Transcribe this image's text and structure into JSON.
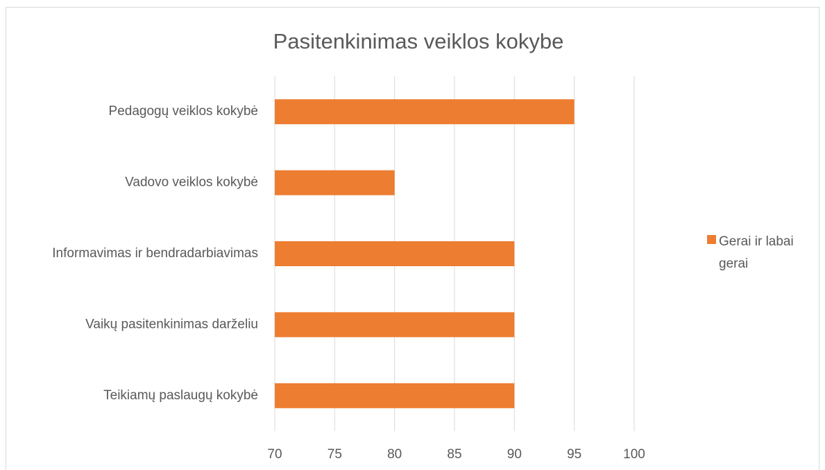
{
  "chart_data": {
    "type": "bar",
    "orientation": "horizontal",
    "title": "Pasitenkinimas veiklos kokybe",
    "categories": [
      "Pedagogų veiklos kokybė",
      "Vadovo veiklos kokybė",
      "Informavimas ir bendradarbiavimas",
      "Vaikų pasitenkinimas darželiu",
      "Teikiamų paslaugų kokybė"
    ],
    "series": [
      {
        "name": "Gerai ir labai gerai",
        "color": "#ed7d31",
        "values": [
          95,
          80,
          90,
          90,
          90
        ]
      }
    ],
    "xlim": [
      70,
      100
    ],
    "xticks": [
      70,
      75,
      80,
      85,
      90,
      95,
      100
    ],
    "grid": true,
    "legend": "right"
  }
}
